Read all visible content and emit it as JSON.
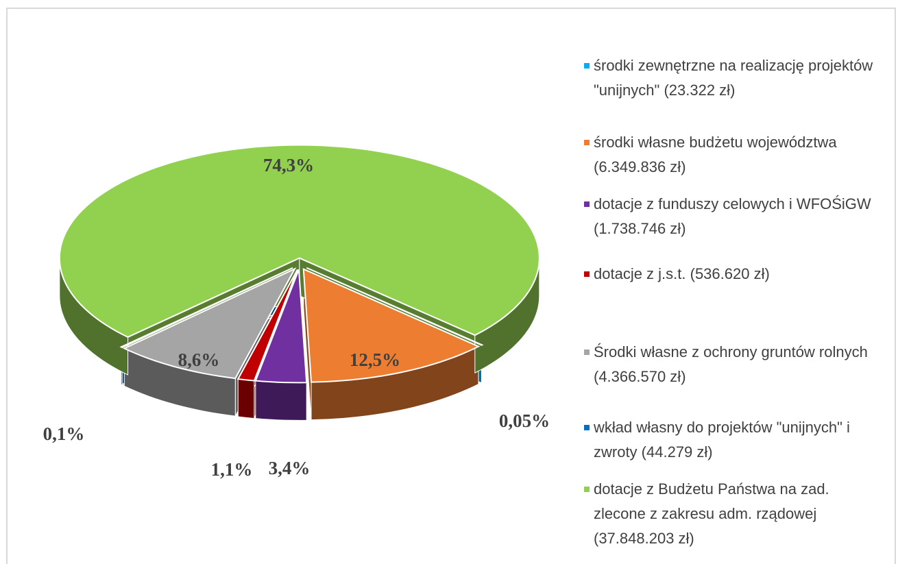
{
  "chart_data": {
    "type": "pie",
    "series": [
      {
        "name": "środki zewnętrzne na realizację projektów \"unijnych\" (23.322 zł)",
        "color": "#00b0f0",
        "value": 0.05,
        "value_label": "0,05%"
      },
      {
        "name": "środki własne budżetu województwa (6.349.836 zł)",
        "color": "#ed7d31",
        "value": 12.5,
        "value_label": "12,5%"
      },
      {
        "name": "dotacje z funduszy celowych i WFOŚiGW (1.738.746 zł)",
        "color": "#7030a0",
        "value": 3.4,
        "value_label": "3,4%"
      },
      {
        "name": "dotacje z j.s.t. (536.620 zł)",
        "color": "#c00000",
        "value": 1.1,
        "value_label": "1,1%"
      },
      {
        "name": "Środki własne z ochrony gruntów rolnych (4.366.570 zł)",
        "color": "#a5a5a5",
        "value": 8.6,
        "value_label": "8,6%"
      },
      {
        "name": "wkład własny do projektów \"unijnych\" i zwroty (44.279 zł)",
        "color": "#0070c0",
        "value": 0.1,
        "value_label": "0,1%"
      },
      {
        "name": "dotacje z Budżetu Państwa na zad. zlecone z zakresu adm. rządowej (37.848.203 zł)",
        "color": "#92d050",
        "value": 74.3,
        "value_label": "74,3%"
      }
    ]
  }
}
